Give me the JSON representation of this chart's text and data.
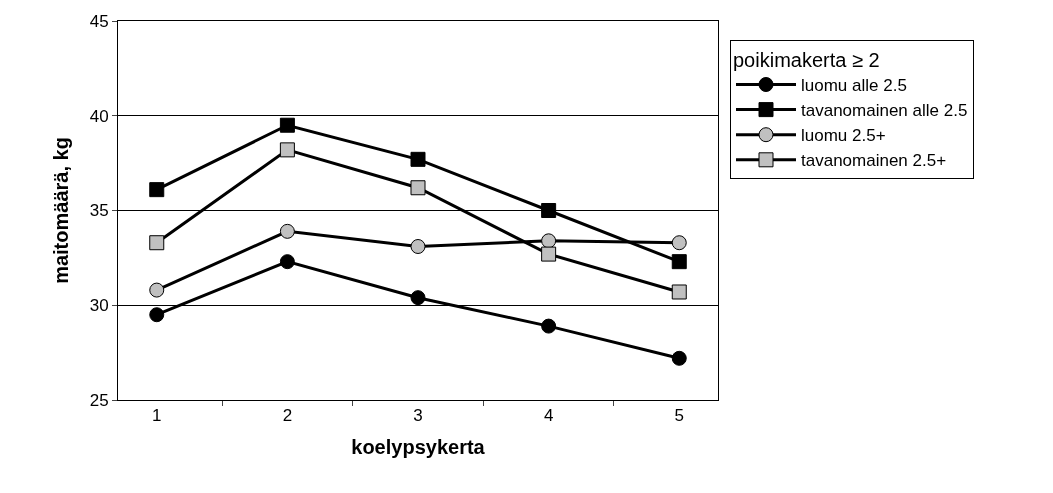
{
  "chart_data": {
    "type": "line",
    "xlabel": "koelypsykerta",
    "ylabel": "maitomäärä, kg",
    "legend_title": "poikimakerta ≥ 2",
    "categories": [
      "1",
      "2",
      "3",
      "4",
      "5"
    ],
    "series": [
      {
        "name": "luomu alle 2.5",
        "color": "#000000",
        "marker": "circle",
        "values": [
          29.5,
          32.3,
          30.4,
          28.9,
          27.2
        ]
      },
      {
        "name": "tavanomainen alle 2.5",
        "color": "#000000",
        "marker": "square",
        "values": [
          36.1,
          39.5,
          37.7,
          35.0,
          32.3
        ]
      },
      {
        "name": "luomu 2.5+",
        "color": "#c0c0c0",
        "marker": "circle",
        "values": [
          30.8,
          33.9,
          33.1,
          33.4,
          33.3
        ]
      },
      {
        "name": "tavanomainen 2.5+",
        "color": "#c0c0c0",
        "marker": "square",
        "values": [
          33.3,
          38.2,
          36.2,
          32.7,
          30.7
        ]
      }
    ],
    "ylim": [
      25,
      45
    ],
    "yticks": [
      25,
      30,
      35,
      40,
      45
    ],
    "grid": "y",
    "legend": "right",
    "line_style": "solid"
  }
}
